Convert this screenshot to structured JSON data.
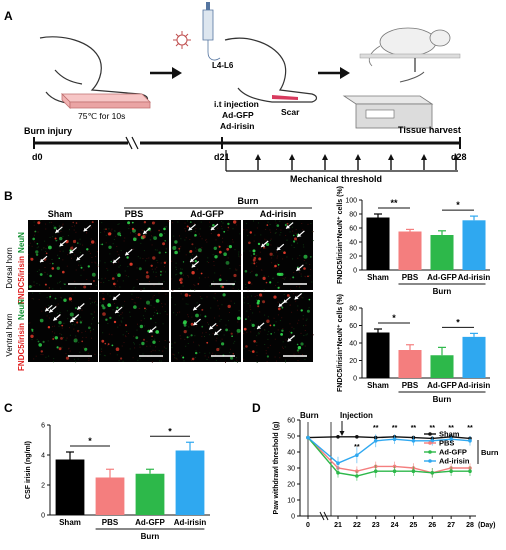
{
  "panels": {
    "a": "A",
    "b": "B",
    "c": "C",
    "d": "D"
  },
  "panel_a": {
    "hot_plate": "75℃ for 10s",
    "spine_label": "L4-L6",
    "injection_lines": [
      "i.t injection",
      "Ad-GFP",
      "Ad-irisin"
    ],
    "scar": "Scar",
    "burn_injury": "Burn injury",
    "tissue_harvest": "Tissue harvest",
    "d0": "d0",
    "d21": "d21",
    "d28": "d28",
    "mechanical_threshold": "Mechanical threshold"
  },
  "panel_b": {
    "group_burn": "Burn",
    "columns": [
      "Sham",
      "PBS",
      "Ad-GFP",
      "Ad-irisin"
    ],
    "row_dorsal": "Dorsal horn",
    "row_ventral": "Ventral horn",
    "stain_red": "FNDC5/irisin",
    "stain_green": "NeuN"
  },
  "chart_data": [
    {
      "type": "bar",
      "panel": "B",
      "categories": [
        "Sham",
        "PBS",
        "Ad-GFP",
        "Ad-irisin"
      ],
      "group_label": "Burn",
      "values": [
        75,
        55,
        50,
        71
      ],
      "errors": [
        5,
        3,
        6,
        6
      ],
      "colors": [
        "#000000",
        "#f47e7e",
        "#2db84a",
        "#2fa8f0"
      ],
      "ylabel": "FNDC5/irisin⁺NeuN⁺ cells (%)",
      "ylim": [
        0,
        100
      ],
      "yticks": [
        "0",
        "20",
        "40",
        "60",
        "80",
        "100"
      ],
      "sig": [
        {
          "from": 0,
          "to": 1,
          "label": "**"
        },
        {
          "from": 2,
          "to": 3,
          "label": "*"
        }
      ]
    },
    {
      "type": "bar",
      "panel": "B",
      "categories": [
        "Sham",
        "PBS",
        "Ad-GFP",
        "Ad-irisin"
      ],
      "group_label": "Burn",
      "values": [
        52,
        32,
        26,
        47
      ],
      "errors": [
        4,
        6,
        9,
        4
      ],
      "colors": [
        "#000000",
        "#f47e7e",
        "#2db84a",
        "#2fa8f0"
      ],
      "ylabel": "FNDC5/irisin⁺NeuN⁺ cells (%)",
      "ylim": [
        0,
        80
      ],
      "yticks": [
        "0",
        "20",
        "40",
        "60",
        "80"
      ],
      "sig": [
        {
          "from": 0,
          "to": 1,
          "label": "*"
        },
        {
          "from": 2,
          "to": 3,
          "label": "*"
        }
      ]
    },
    {
      "type": "bar",
      "panel": "C",
      "categories": [
        "Sham",
        "PBS",
        "Ad-GFP",
        "Ad-irisin"
      ],
      "group_label": "Burn",
      "values": [
        3.7,
        2.5,
        2.75,
        4.3
      ],
      "errors": [
        0.5,
        0.55,
        0.3,
        0.55
      ],
      "colors": [
        "#000000",
        "#f47e7e",
        "#2db84a",
        "#2fa8f0"
      ],
      "ylabel": "CSF irisin (ng/ml)",
      "ylim": [
        0,
        6
      ],
      "yticks": [
        "0",
        "2",
        "4",
        "6"
      ],
      "sig": [
        {
          "from": 0,
          "to": 1,
          "label": "*"
        },
        {
          "from": 2,
          "to": 3,
          "label": "*"
        }
      ]
    },
    {
      "type": "line",
      "panel": "D",
      "x": [
        0,
        21,
        22,
        23,
        24,
        25,
        26,
        27,
        28
      ],
      "xticks": [
        "0",
        "21",
        "22",
        "23",
        "24",
        "25",
        "26",
        "27",
        "28"
      ],
      "xunit": "(Day)",
      "ylabel": "Paw withdrawl threshold (g)",
      "ylim": [
        0,
        60
      ],
      "yticks": [
        "0",
        "10",
        "20",
        "30",
        "40",
        "50",
        "60"
      ],
      "annotations": {
        "burn": "Burn",
        "injection": "Injection"
      },
      "burn_group": "Burn",
      "series": [
        {
          "name": "Sham",
          "color": "#111111",
          "values": [
            49,
            49.5,
            49.5,
            49,
            49.5,
            49,
            48.5,
            49.5,
            48.5
          ],
          "errors": [
            1,
            1,
            1,
            1,
            1,
            1,
            1,
            1,
            1
          ]
        },
        {
          "name": "PBS",
          "color": "#f47e7e",
          "values": [
            49,
            30,
            28,
            31,
            31,
            30,
            27,
            30,
            30
          ],
          "errors": [
            1,
            3,
            3,
            3,
            3,
            3,
            3,
            3,
            3
          ]
        },
        {
          "name": "Ad-GFP",
          "color": "#2db84a",
          "values": [
            49,
            27,
            25,
            28,
            28,
            28,
            27,
            28,
            28
          ],
          "errors": [
            1,
            3,
            3,
            4,
            3,
            3,
            3,
            3,
            3
          ]
        },
        {
          "name": "Ad-irisin",
          "color": "#2fa8f0",
          "values": [
            49,
            33,
            38,
            47,
            48,
            47,
            47,
            48,
            47
          ],
          "errors": [
            1,
            4,
            5,
            4,
            3,
            3,
            3,
            3,
            3
          ]
        }
      ],
      "sig": [
        {
          "x": 22,
          "label": "**"
        },
        {
          "x": 23,
          "label": "**"
        },
        {
          "x": 24,
          "label": "**"
        },
        {
          "x": 25,
          "label": "**"
        },
        {
          "x": 26,
          "label": "**"
        },
        {
          "x": 27,
          "label": "**"
        },
        {
          "x": 28,
          "label": "**"
        }
      ]
    }
  ]
}
